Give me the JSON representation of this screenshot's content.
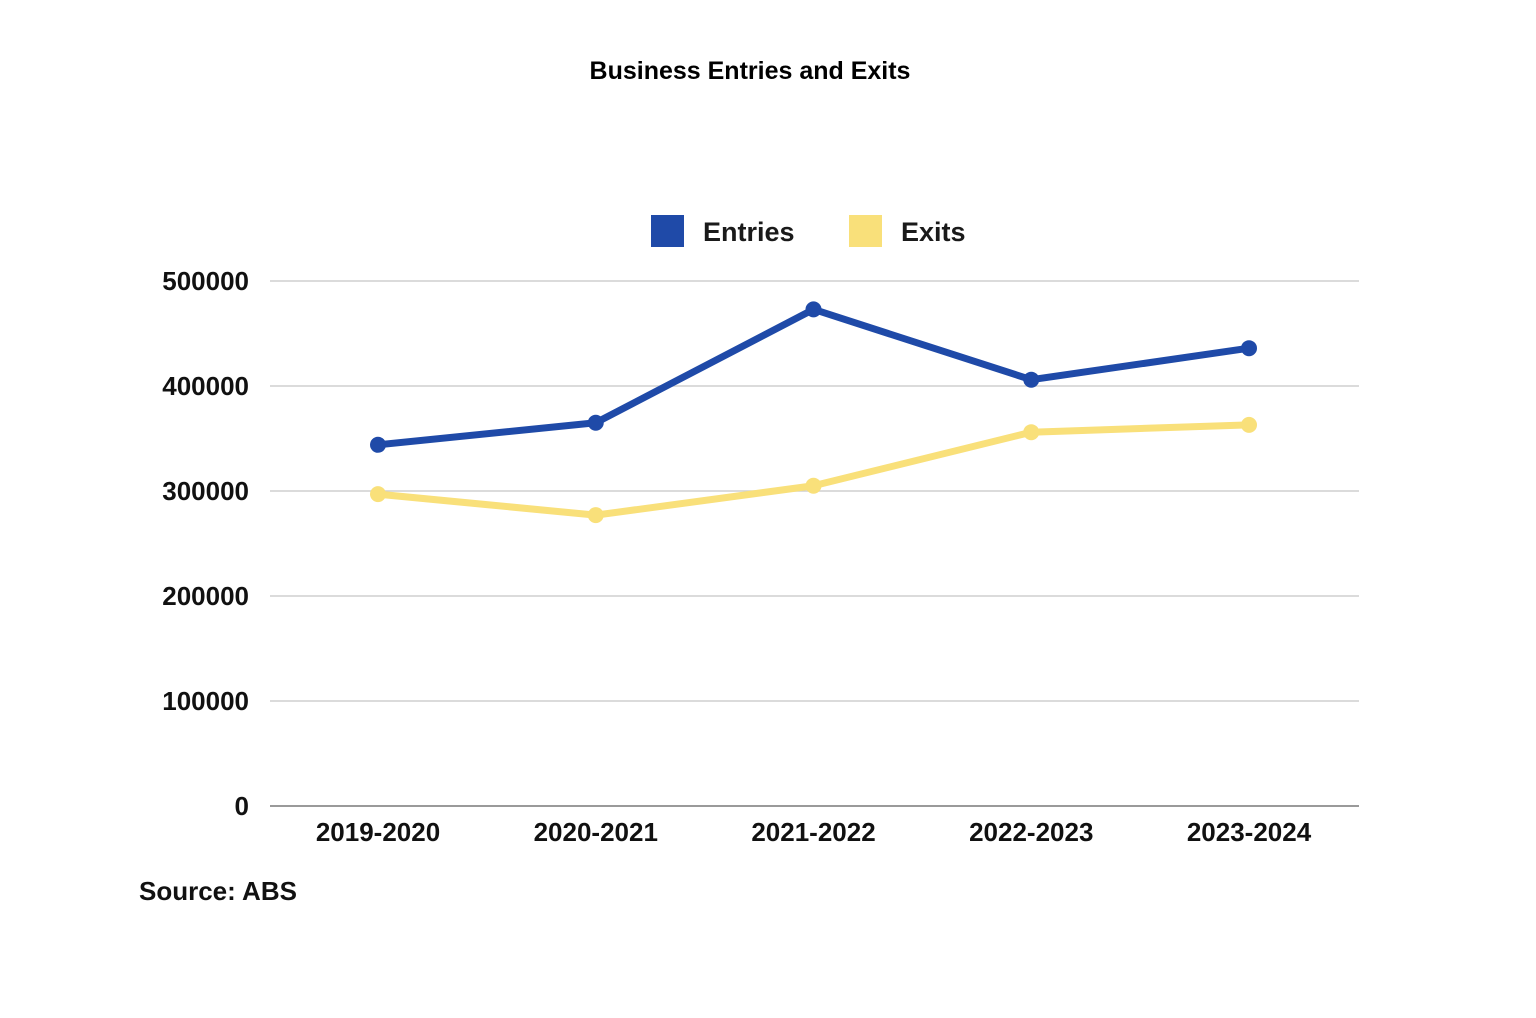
{
  "chart_data": {
    "type": "line",
    "title": "Business Entries and Exits",
    "source": "Source: ABS",
    "categories": [
      "2019-2020",
      "2020-2021",
      "2021-2022",
      "2022-2023",
      "2023-2024"
    ],
    "series": [
      {
        "name": "Entries",
        "color": "#1f4aa8",
        "values": [
          344000,
          365000,
          473000,
          406000,
          436000
        ]
      },
      {
        "name": "Exits",
        "color": "#f9e07a",
        "values": [
          297000,
          277000,
          305000,
          356000,
          363000
        ]
      }
    ],
    "yticks": [
      "0",
      "100000",
      "200000",
      "300000",
      "400000",
      "500000"
    ],
    "ylim": [
      0,
      500000
    ],
    "xlabel": "",
    "ylabel": "",
    "grid": true,
    "legend": "top-center"
  }
}
